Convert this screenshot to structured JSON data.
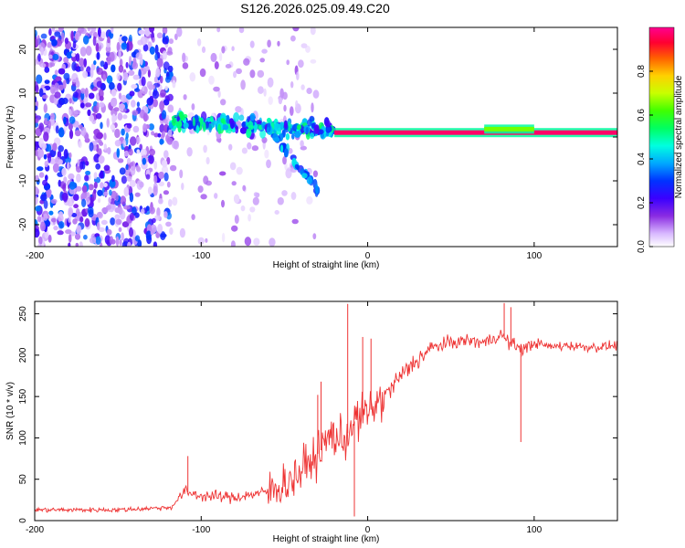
{
  "title": "S126.2026.025.09.49.C20",
  "chart_data": [
    {
      "type": "heatmap",
      "xlabel": "Height of straight line (km)",
      "ylabel": "Frequency (Hz)",
      "xlim": [
        -200,
        150
      ],
      "ylim": [
        -25,
        25
      ],
      "xticks": [
        -200,
        -100,
        0,
        100
      ],
      "yticks": [
        20,
        10,
        0,
        -10,
        -20
      ],
      "colorbar": {
        "label": "Normalized spectral amplitude",
        "range": [
          0,
          1
        ],
        "ticks": [
          "0.0",
          "0.2",
          "0.4",
          "0.6",
          "0.8"
        ]
      },
      "scatter_regions": [
        {
          "name": "noise",
          "x": [
            -200,
            -118
          ],
          "y": [
            -25,
            25
          ],
          "level": [
            0.05,
            0.35
          ]
        },
        {
          "name": "sparse",
          "x": [
            -118,
            -30
          ],
          "y": [
            -25,
            25
          ],
          "level": [
            0.02,
            0.12
          ]
        },
        {
          "name": "onset",
          "x": [
            -118,
            -20
          ],
          "y": [
            -2,
            8
          ],
          "level": [
            0.2,
            0.55
          ]
        },
        {
          "name": "descending-branch",
          "x": [
            -60,
            -30
          ],
          "y": [
            -12,
            2
          ],
          "level": [
            0.25,
            0.45
          ]
        }
      ],
      "line_segments": [
        {
          "x": [
            -20,
            150
          ],
          "y": 1.0,
          "level": 0.97
        },
        {
          "x": [
            70,
            100
          ],
          "y": 1.8,
          "level": 0.65
        }
      ]
    },
    {
      "type": "line",
      "xlabel": "Height of straight line (km)",
      "ylabel": "SNR (10 * v/v)",
      "xlim": [
        -200,
        150
      ],
      "ylim": [
        0,
        265
      ],
      "xticks": [
        -200,
        -100,
        0,
        100
      ],
      "yticks": [
        0,
        50,
        100,
        150,
        200,
        250
      ],
      "color": "#ee3333",
      "series": [
        {
          "name": "SNR",
          "x": [
            -200,
            -150,
            -118,
            -110,
            -100,
            -80,
            -60,
            -45,
            -35,
            -28,
            -22,
            -15,
            -8,
            0,
            10,
            20,
            30,
            40,
            50,
            60,
            70,
            80,
            85,
            90,
            95,
            100,
            110,
            120,
            130,
            140,
            150
          ],
          "y": [
            13,
            13,
            16,
            35,
            30,
            28,
            35,
            50,
            70,
            85,
            105,
            95,
            120,
            130,
            150,
            175,
            195,
            210,
            215,
            218,
            215,
            225,
            215,
            210,
            208,
            215,
            210,
            212,
            210,
            210,
            212
          ]
        }
      ],
      "spikes": [
        {
          "x": -108,
          "y": 78
        },
        {
          "x": -30,
          "y": 152
        },
        {
          "x": -28,
          "y": 168
        },
        {
          "x": -12,
          "y": 262
        },
        {
          "x": -8,
          "y": 5
        },
        {
          "x": -3,
          "y": 222
        },
        {
          "x": 2,
          "y": 220
        },
        {
          "x": 82,
          "y": 263
        },
        {
          "x": 86,
          "y": 258
        },
        {
          "x": 92,
          "y": 95
        }
      ]
    }
  ]
}
